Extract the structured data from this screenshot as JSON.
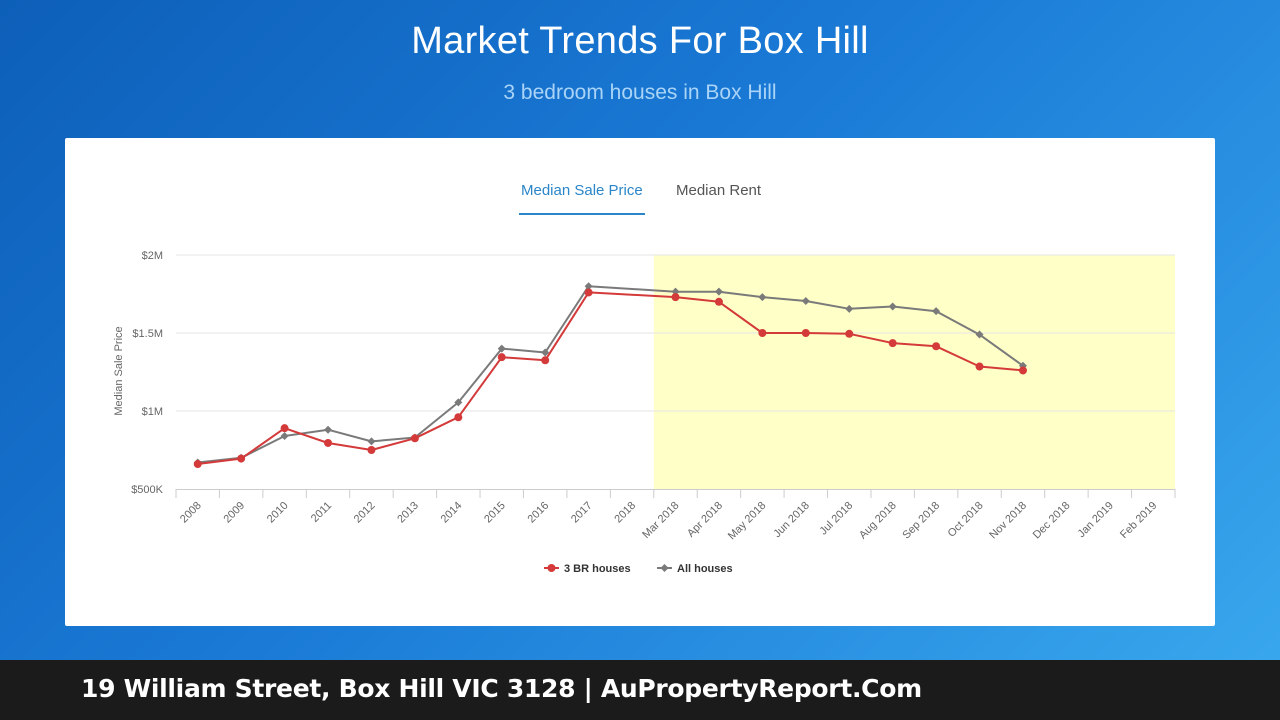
{
  "header": {
    "title": "Market Trends For Box Hill",
    "subtitle": "3 bedroom houses in Box Hill"
  },
  "tabs": [
    {
      "label": "Median Sale Price",
      "active": true
    },
    {
      "label": "Median Rent",
      "active": false
    }
  ],
  "footer": {
    "text": "19 William Street, Box Hill VIC 3128 | AuPropertyReport.Com"
  },
  "colors": {
    "series_3br": "#d43a3a",
    "series_all": "#7a7a7a",
    "highlight": "#ffffc8",
    "tab_active": "#2a86c9"
  },
  "chart_data": {
    "type": "line",
    "ylabel": "Median Sale Price",
    "xlabel": "",
    "ylim": [
      500000,
      2000000
    ],
    "yticks": [
      {
        "value": 500000,
        "label": "$500K"
      },
      {
        "value": 1000000,
        "label": "$1M"
      },
      {
        "value": 1500000,
        "label": "$1.5M"
      },
      {
        "value": 2000000,
        "label": "$2M"
      }
    ],
    "categories": [
      "2008",
      "2009",
      "2010",
      "2011",
      "2012",
      "2013",
      "2014",
      "2015",
      "2016",
      "2017",
      "2018",
      "Mar 2018",
      "Apr 2018",
      "May 2018",
      "Jun 2018",
      "Jul 2018",
      "Aug 2018",
      "Sep 2018",
      "Oct 2018",
      "Nov 2018",
      "Dec 2018",
      "Jan 2019",
      "Feb 2019"
    ],
    "highlight_from": "Mar 2018",
    "grid": true,
    "legend_position": "bottom",
    "series": [
      {
        "name": "3 BR houses",
        "marker": "circle",
        "values": [
          660000,
          695000,
          890000,
          795000,
          750000,
          825000,
          960000,
          1345000,
          1325000,
          1760000,
          null,
          1730000,
          1700000,
          1500000,
          1500000,
          1495000,
          1435000,
          1415000,
          1285000,
          1260000,
          null,
          null,
          null
        ]
      },
      {
        "name": "All houses",
        "marker": "diamond",
        "values": [
          670000,
          700000,
          840000,
          880000,
          805000,
          830000,
          1055000,
          1400000,
          1375000,
          1800000,
          null,
          1765000,
          1765000,
          1730000,
          1705000,
          1655000,
          1670000,
          1640000,
          1490000,
          1290000,
          null,
          null,
          null
        ]
      }
    ]
  }
}
